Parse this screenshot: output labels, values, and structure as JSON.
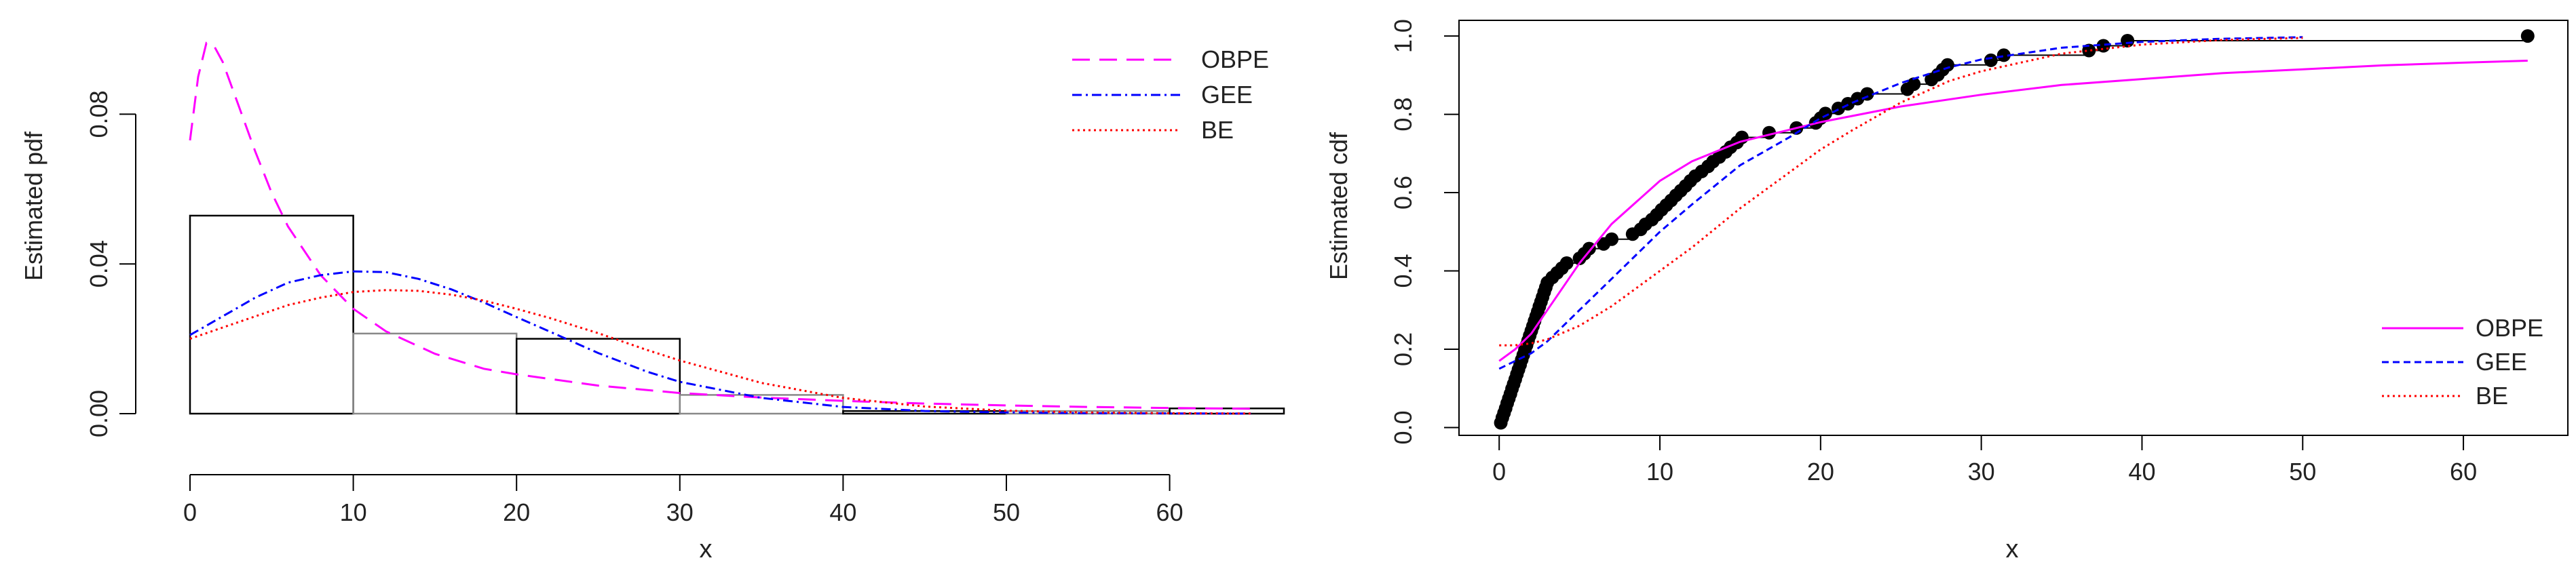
{
  "chart_data": [
    {
      "type": "line",
      "title": "",
      "xlabel": "x",
      "ylabel": "Estimated pdf",
      "xlim": [
        0,
        67
      ],
      "ylim": [
        0,
        0.1
      ],
      "x_ticks": [
        "0",
        "10",
        "20",
        "30",
        "40",
        "50",
        "60"
      ],
      "y_ticks": [
        "0.00",
        "0.04",
        "0.08"
      ],
      "legend_position": "top-right",
      "legend": [
        "OBPE",
        "GEE",
        "BE"
      ],
      "histogram": {
        "bins": [
          [
            0,
            10
          ],
          [
            10,
            20
          ],
          [
            20,
            30
          ],
          [
            30,
            40
          ],
          [
            40,
            50
          ],
          [
            50,
            60
          ],
          [
            60,
            67
          ]
        ],
        "density": [
          0.0529,
          0.0214,
          0.02,
          0.005,
          0.0007,
          0.0007,
          0.0014
        ]
      },
      "series": [
        {
          "name": "OBPE",
          "color": "#ff00ff",
          "dash": "long-dash",
          "x": [
            0,
            0.5,
            1,
            1.5,
            2,
            3,
            4,
            5,
            6,
            8,
            10,
            12,
            15,
            18,
            20,
            25,
            30,
            35,
            40,
            45,
            50,
            55,
            60,
            65
          ],
          "y": [
            0.073,
            0.09,
            0.099,
            0.098,
            0.094,
            0.082,
            0.07,
            0.059,
            0.05,
            0.037,
            0.028,
            0.022,
            0.016,
            0.012,
            0.0105,
            0.0075,
            0.0055,
            0.0043,
            0.0034,
            0.0027,
            0.0022,
            0.0018,
            0.0015,
            0.0013
          ]
        },
        {
          "name": "GEE",
          "color": "#0000ff",
          "dash": "dash-dot",
          "x": [
            0,
            2,
            4,
            6,
            8,
            10,
            12,
            14,
            16,
            18,
            20,
            22,
            25,
            28,
            30,
            35,
            40,
            45,
            50,
            55,
            60,
            65
          ],
          "y": [
            0.021,
            0.026,
            0.031,
            0.035,
            0.037,
            0.038,
            0.0378,
            0.036,
            0.0332,
            0.0297,
            0.0258,
            0.022,
            0.0162,
            0.0112,
            0.0085,
            0.0042,
            0.0018,
            0.0007,
            0.0003,
            0.0001,
            5e-05,
            2e-05
          ]
        },
        {
          "name": "BE",
          "color": "#ff0000",
          "dash": "dotted",
          "x": [
            0,
            2,
            4,
            6,
            8,
            10,
            12,
            14,
            16,
            18,
            20,
            22,
            25,
            28,
            30,
            35,
            40,
            45,
            50,
            55,
            60,
            65
          ],
          "y": [
            0.02,
            0.023,
            0.026,
            0.029,
            0.031,
            0.0325,
            0.033,
            0.0328,
            0.0318,
            0.0302,
            0.028,
            0.0256,
            0.0215,
            0.017,
            0.0142,
            0.0082,
            0.0042,
            0.0019,
            0.0008,
            0.0003,
            0.0001,
            4e-05
          ]
        }
      ]
    },
    {
      "type": "line",
      "title": "",
      "xlabel": "x",
      "ylabel": "Estimated cdf",
      "xlim": [
        -2.5,
        66.5
      ],
      "ylim": [
        -0.02,
        1.04
      ],
      "x_ticks": [
        "0",
        "10",
        "20",
        "30",
        "40",
        "50",
        "60"
      ],
      "y_ticks": [
        "0.0",
        "0.2",
        "0.4",
        "0.6",
        "0.8",
        "1.0"
      ],
      "legend_position": "bottom-right",
      "legend": [
        "OBPE",
        "GEE",
        "BE"
      ],
      "empirical": {
        "x": [
          0.1,
          0.2,
          0.3,
          0.4,
          0.5,
          0.6,
          0.7,
          0.8,
          0.9,
          1.0,
          1.1,
          1.2,
          1.3,
          1.4,
          1.5,
          1.6,
          1.7,
          1.8,
          1.9,
          2.0,
          2.1,
          2.2,
          2.3,
          2.4,
          2.5,
          2.6,
          2.7,
          2.8,
          2.9,
          3.0,
          3.3,
          3.6,
          3.9,
          4.2,
          5.0,
          5.3,
          5.6,
          6.5,
          7.0,
          8.3,
          8.8,
          9.1,
          9.5,
          9.8,
          10.1,
          10.4,
          10.7,
          11.0,
          11.3,
          11.6,
          11.9,
          12.2,
          12.6,
          13.0,
          13.3,
          13.7,
          14.1,
          14.4,
          14.8,
          15.1,
          16.8,
          18.5,
          19.7,
          20.0,
          20.3,
          21.1,
          21.7,
          22.3,
          22.9,
          25.4,
          25.8,
          26.9,
          27.3,
          27.6,
          27.9,
          30.6,
          31.4,
          36.7,
          37.6,
          39.1,
          64.0
        ],
        "y": [
          0.012,
          0.025,
          0.037,
          0.049,
          0.062,
          0.074,
          0.086,
          0.099,
          0.111,
          0.123,
          0.136,
          0.148,
          0.16,
          0.173,
          0.185,
          0.198,
          0.21,
          0.222,
          0.235,
          0.247,
          0.259,
          0.272,
          0.284,
          0.296,
          0.309,
          0.321,
          0.333,
          0.346,
          0.358,
          0.37,
          0.383,
          0.395,
          0.407,
          0.42,
          0.432,
          0.444,
          0.457,
          0.469,
          0.481,
          0.494,
          0.506,
          0.519,
          0.531,
          0.543,
          0.556,
          0.568,
          0.58,
          0.593,
          0.605,
          0.617,
          0.63,
          0.642,
          0.654,
          0.667,
          0.679,
          0.691,
          0.704,
          0.716,
          0.728,
          0.741,
          0.753,
          0.765,
          0.778,
          0.79,
          0.802,
          0.815,
          0.827,
          0.84,
          0.852,
          0.864,
          0.877,
          0.889,
          0.901,
          0.914,
          0.926,
          0.938,
          0.951,
          0.963,
          0.975,
          0.988,
          1.0
        ]
      },
      "series": [
        {
          "name": "OBPE",
          "color": "#ff00ff",
          "dash": "solid",
          "x": [
            0,
            1,
            2,
            3,
            5,
            7,
            10,
            12,
            15,
            18,
            20,
            25,
            30,
            35,
            40,
            45,
            50,
            55,
            60,
            64
          ],
          "y": [
            0.17,
            0.2,
            0.24,
            0.3,
            0.42,
            0.52,
            0.63,
            0.68,
            0.73,
            0.76,
            0.78,
            0.82,
            0.85,
            0.875,
            0.89,
            0.905,
            0.915,
            0.925,
            0.932,
            0.937
          ]
        },
        {
          "name": "GEE",
          "color": "#0000ff",
          "dash": "dashed",
          "x": [
            0,
            1,
            2,
            3,
            5,
            7,
            10,
            12,
            15,
            18,
            20,
            22,
            25,
            28,
            30,
            35,
            40,
            45,
            50
          ],
          "y": [
            0.15,
            0.17,
            0.19,
            0.22,
            0.3,
            0.38,
            0.5,
            0.57,
            0.67,
            0.74,
            0.79,
            0.83,
            0.88,
            0.92,
            0.94,
            0.97,
            0.985,
            0.993,
            0.997
          ]
        },
        {
          "name": "BE",
          "color": "#ff0000",
          "dash": "dotted",
          "x": [
            0,
            1,
            2,
            3,
            5,
            7,
            10,
            12,
            15,
            18,
            20,
            22,
            25,
            28,
            30,
            35,
            40,
            45,
            50
          ],
          "y": [
            0.21,
            0.21,
            0.215,
            0.225,
            0.26,
            0.31,
            0.4,
            0.46,
            0.56,
            0.65,
            0.71,
            0.76,
            0.83,
            0.885,
            0.91,
            0.955,
            0.978,
            0.99,
            0.995
          ]
        }
      ]
    }
  ]
}
